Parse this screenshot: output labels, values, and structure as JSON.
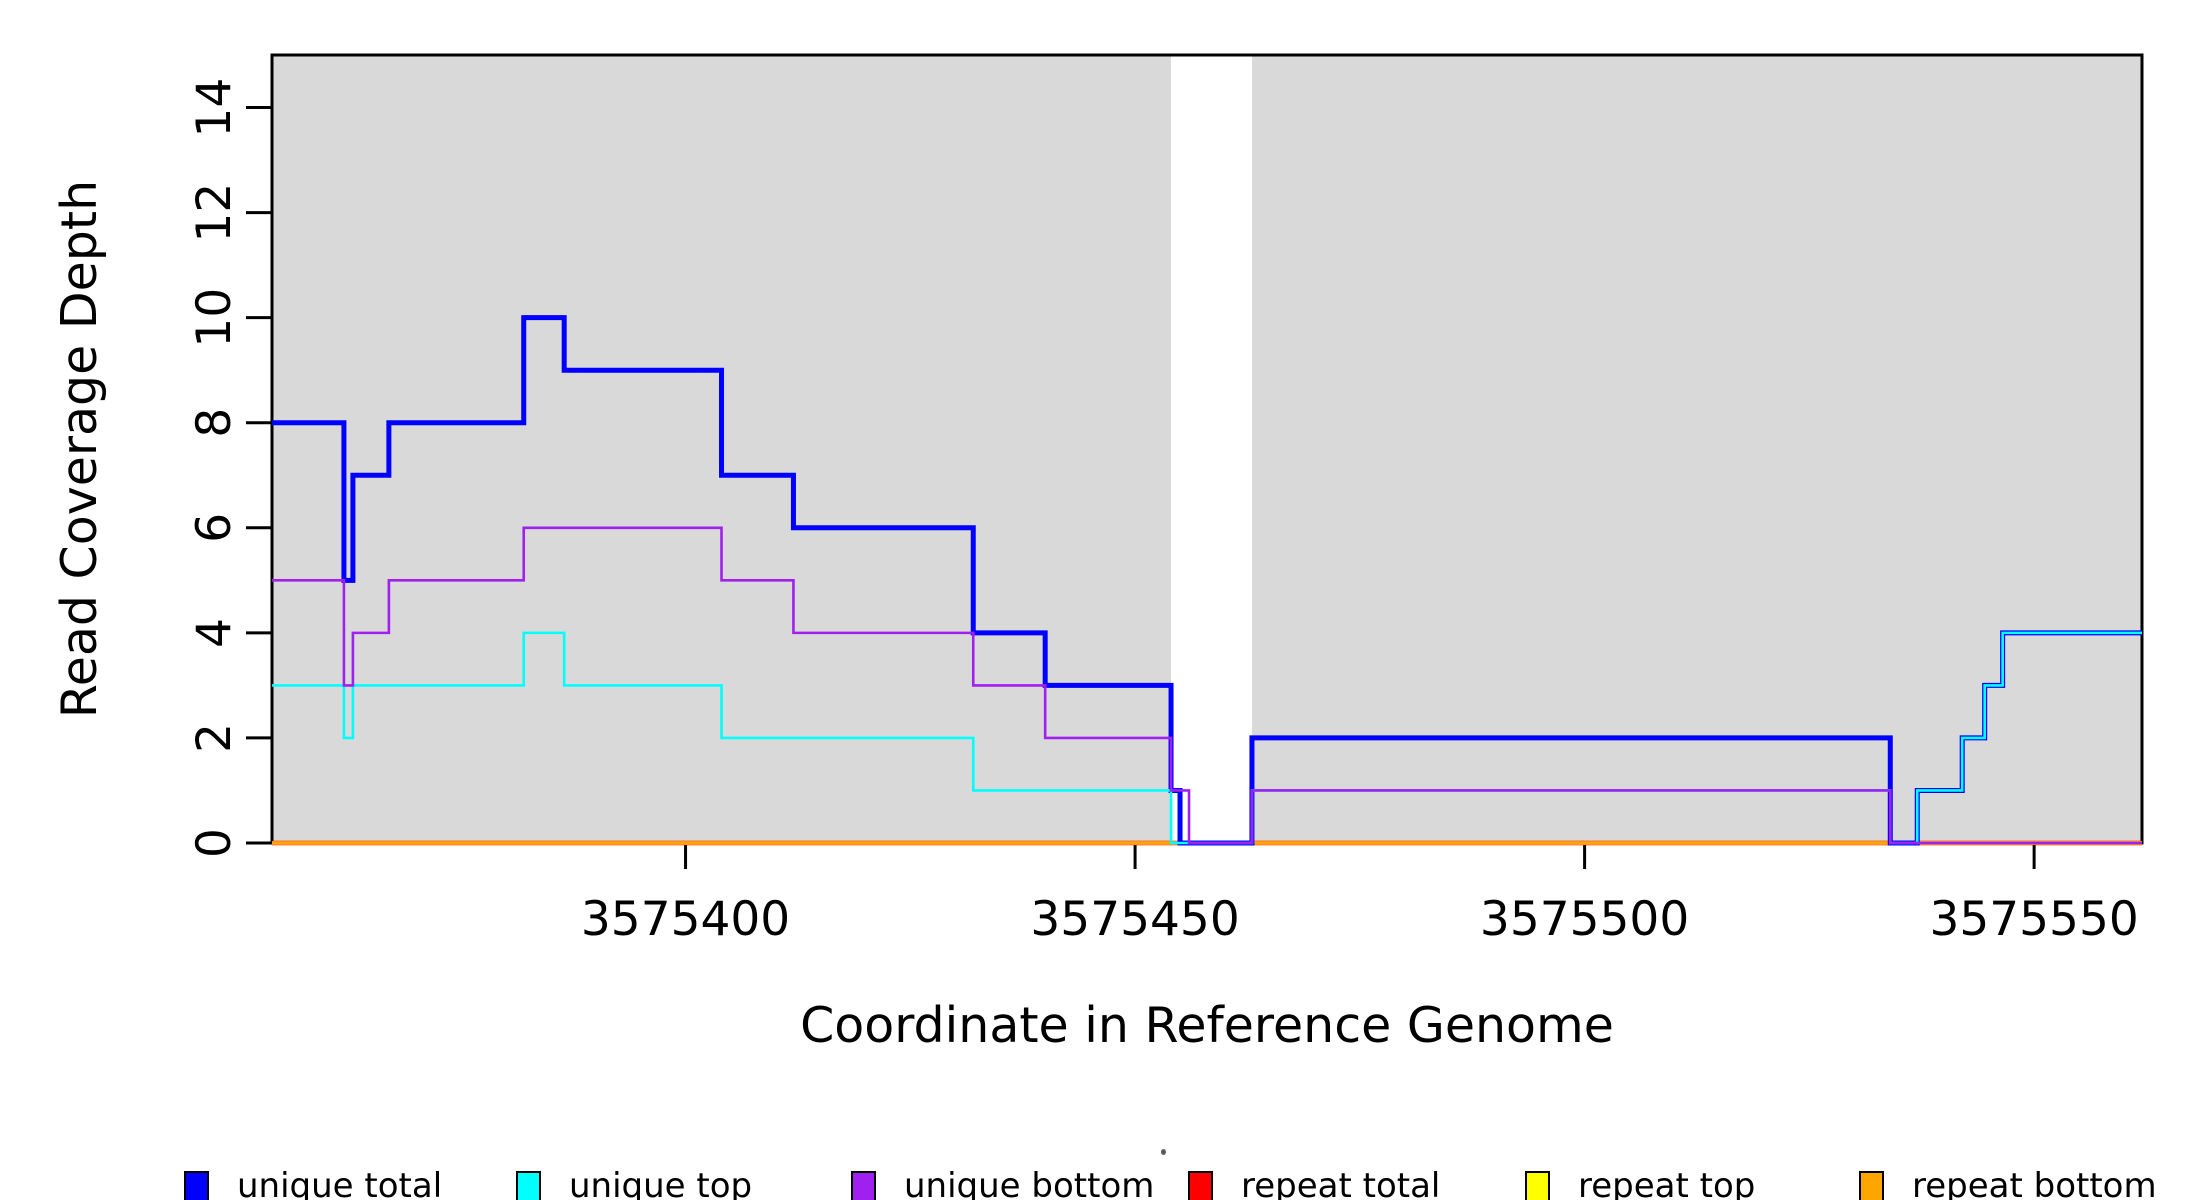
{
  "chart_data": {
    "type": "line",
    "subtype": "step-coverage",
    "title": "",
    "xlabel": "Coordinate in Reference Genome",
    "ylabel": "Read Coverage Depth",
    "xlim": [
      3575354,
      3575562
    ],
    "ylim": [
      0,
      15
    ],
    "x_ticks": [
      3575400,
      3575450,
      3575500,
      3575550
    ],
    "x_tick_labels": [
      "3575400",
      "3575450",
      "3575500",
      "3575550"
    ],
    "y_ticks": [
      0,
      2,
      4,
      6,
      8,
      10,
      12,
      14
    ],
    "y_tick_labels": [
      "0",
      "2",
      "4",
      "6",
      "8",
      "10",
      "12",
      "14"
    ],
    "grid": false,
    "plot_background_color": "#D9D9D9",
    "masked_region": [
      3575454,
      3575463
    ],
    "shaded_regions": [
      [
        3575354,
        3575454
      ],
      [
        3575463,
        3575562
      ]
    ],
    "axis_color": "#000000",
    "legend_position": "bottom",
    "series": [
      {
        "name": "repeat total",
        "color": "#FF0000",
        "width": 4.5,
        "segments": [
          [
            3575354,
            3575562,
            0
          ]
        ]
      },
      {
        "name": "repeat top",
        "color": "#FFFF00",
        "width": 3.5,
        "segments": [
          [
            3575354,
            3575562,
            0
          ]
        ]
      },
      {
        "name": "repeat bottom",
        "color": "#FFA500",
        "width": 3,
        "segments": [
          [
            3575354,
            3575562,
            0
          ]
        ]
      },
      {
        "name": "unique total",
        "color": "#0000FF",
        "width": 5,
        "segments": [
          [
            3575354,
            3575362,
            8
          ],
          [
            3575362,
            3575363,
            5
          ],
          [
            3575363,
            3575367,
            7
          ],
          [
            3575367,
            3575382,
            8
          ],
          [
            3575382,
            3575386.5,
            10
          ],
          [
            3575386.5,
            3575404,
            9
          ],
          [
            3575404,
            3575412,
            7
          ],
          [
            3575412,
            3575432,
            6
          ],
          [
            3575432,
            3575440,
            4
          ],
          [
            3575440,
            3575454,
            3
          ],
          [
            3575454,
            3575455,
            1
          ],
          [
            3575455,
            3575463,
            0
          ],
          [
            3575463,
            3575534,
            2
          ],
          [
            3575534,
            3575537,
            0
          ],
          [
            3575537,
            3575542,
            1
          ],
          [
            3575542,
            3575544.5,
            2
          ],
          [
            3575544.5,
            3575546.5,
            3
          ],
          [
            3575546.5,
            3575562,
            4
          ]
        ]
      },
      {
        "name": "unique top",
        "color": "#00FFFF",
        "width": 2.6,
        "segments": [
          [
            3575354,
            3575362,
            3
          ],
          [
            3575362,
            3575363,
            2
          ],
          [
            3575363,
            3575382,
            3
          ],
          [
            3575382,
            3575386.5,
            4
          ],
          [
            3575386.5,
            3575404,
            3
          ],
          [
            3575404,
            3575432,
            2
          ],
          [
            3575432,
            3575454,
            1
          ],
          [
            3575454,
            3575463,
            0
          ],
          [
            3575463,
            3575534,
            1
          ],
          [
            3575534,
            3575537,
            0
          ],
          [
            3575537,
            3575542,
            1
          ],
          [
            3575542,
            3575544.5,
            2
          ],
          [
            3575544.5,
            3575546.5,
            3
          ],
          [
            3575546.5,
            3575562,
            4
          ]
        ]
      },
      {
        "name": "unique bottom",
        "color": "#A020F0",
        "width": 2.6,
        "segments": [
          [
            3575354,
            3575362,
            5
          ],
          [
            3575362,
            3575363,
            3
          ],
          [
            3575363,
            3575367,
            4
          ],
          [
            3575367,
            3575382,
            5
          ],
          [
            3575382,
            3575404,
            6
          ],
          [
            3575404,
            3575412,
            5
          ],
          [
            3575412,
            3575432,
            4
          ],
          [
            3575432,
            3575440,
            3
          ],
          [
            3575440,
            3575454,
            2
          ],
          [
            3575454,
            3575456,
            1
          ],
          [
            3575456,
            3575463,
            0
          ],
          [
            3575463,
            3575534,
            1
          ],
          [
            3575534,
            3575562,
            0
          ]
        ]
      }
    ],
    "legend": [
      {
        "label": "unique total",
        "color": "#0000FF"
      },
      {
        "label": "unique top",
        "color": "#00FFFF"
      },
      {
        "label": "unique bottom",
        "color": "#A020F0"
      },
      {
        "label": "repeat total",
        "color": "#FF0000"
      },
      {
        "label": "repeat top",
        "color": "#FFFF00"
      },
      {
        "label": "repeat bottom",
        "color": "#FFA500"
      }
    ]
  }
}
